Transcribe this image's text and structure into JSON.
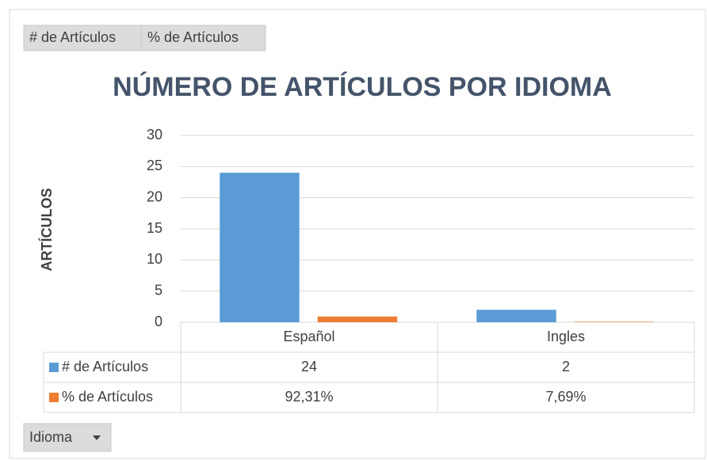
{
  "chart_data": {
    "type": "bar",
    "title": "NÚMERO DE ARTÍCULOS POR IDIOMA",
    "y_label": "ARTÍCULOS",
    "categories": [
      "Español",
      "Ingles"
    ],
    "series": [
      {
        "name": "# de Artículos",
        "color": "#5b9bd5",
        "values": [
          24,
          2
        ]
      },
      {
        "name": "% de Artículos",
        "color": "#ed7d31",
        "values": [
          0.9231,
          0.0769
        ],
        "value_labels": [
          "92,31%",
          "7,69%"
        ]
      }
    ],
    "ylim": [
      0,
      30
    ],
    "yticks": [
      0,
      5,
      10,
      15,
      20,
      25,
      30
    ],
    "grid": true,
    "field_buttons": [
      "# de Artículos",
      "% de Artículos"
    ],
    "axis_field_button": "Idioma"
  }
}
